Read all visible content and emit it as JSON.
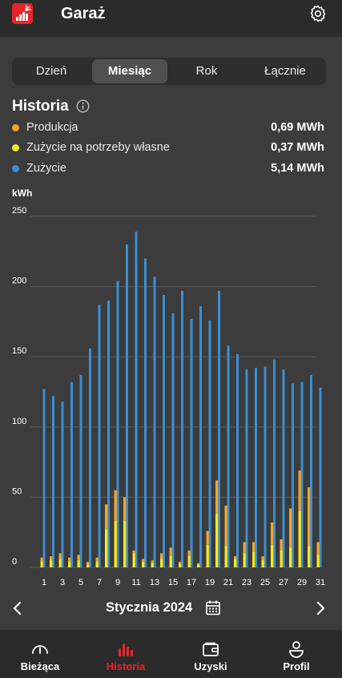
{
  "header": {
    "title": "Garaż",
    "logo_icon": "solar-panel-logo-icon",
    "settings_icon": "gear-icon"
  },
  "period_tabs": [
    {
      "label": "Dzień",
      "active": false
    },
    {
      "label": "Miesiąc",
      "active": true
    },
    {
      "label": "Rok",
      "active": false
    },
    {
      "label": "Łącznie",
      "active": false
    }
  ],
  "history": {
    "title": "Historia",
    "info_icon": "info-icon",
    "legend": [
      {
        "label": "Produkcja",
        "value": "0,69 MWh",
        "color": "#f5a623"
      },
      {
        "label": "Zużycie na potrzeby własne",
        "value": "0,37 MWh",
        "color": "#f8e71c"
      },
      {
        "label": "Zużycie",
        "value": "5,14 MWh",
        "color": "#3a8fd6"
      }
    ]
  },
  "chart_data": {
    "type": "bar",
    "ylabel": "kWh",
    "ylim": [
      0,
      250
    ],
    "yticks": [
      0,
      50,
      100,
      150,
      200,
      250
    ],
    "grid": true,
    "x": [
      1,
      2,
      3,
      4,
      5,
      6,
      7,
      8,
      9,
      10,
      11,
      12,
      13,
      14,
      15,
      16,
      17,
      18,
      19,
      20,
      21,
      22,
      23,
      24,
      25,
      26,
      27,
      28,
      29,
      30,
      31
    ],
    "xtick_labels": [
      "1",
      "3",
      "5",
      "7",
      "9",
      "11",
      "13",
      "15",
      "17",
      "19",
      "21",
      "23",
      "25",
      "27",
      "29",
      "31"
    ],
    "series": [
      {
        "name": "Zużycie",
        "color": "#3a8fd6",
        "values": [
          127,
          122,
          118,
          132,
          137,
          156,
          187,
          190,
          204,
          230,
          239,
          220,
          207,
          194,
          181,
          197,
          177,
          186,
          176,
          197,
          158,
          152,
          141,
          142,
          143,
          148,
          141,
          131,
          132,
          137,
          128
        ]
      },
      {
        "name": "Produkcja",
        "color": "#f5a623",
        "values": [
          7,
          8,
          10,
          7,
          9,
          4,
          7,
          45,
          55,
          50,
          12,
          6,
          5,
          10,
          14,
          4,
          12,
          3,
          26,
          62,
          44,
          8,
          18,
          18,
          8,
          32,
          20,
          42,
          69,
          57,
          18
        ]
      },
      {
        "name": "Zużycie na potrzeby własne",
        "color": "#f8e71c",
        "values": [
          4,
          5,
          6,
          4,
          5,
          2,
          4,
          27,
          33,
          33,
          10,
          4,
          3,
          6,
          8,
          3,
          8,
          2,
          16,
          38,
          15,
          6,
          10,
          11,
          5,
          16,
          12,
          14,
          40,
          15,
          9
        ]
      }
    ]
  },
  "month_nav": {
    "label": "Stycznia 2024",
    "prev_icon": "chevron-left-icon",
    "next_icon": "chevron-right-icon",
    "calendar_icon": "calendar-icon"
  },
  "bottom_nav": [
    {
      "label": "Bieżąca",
      "icon": "gauge-icon",
      "active": false
    },
    {
      "label": "Historia",
      "icon": "bar-chart-icon",
      "active": true
    },
    {
      "label": "Uzyski",
      "icon": "wallet-icon",
      "active": false
    },
    {
      "label": "Profil",
      "icon": "profile-icon",
      "active": false
    }
  ],
  "colors": {
    "accent": "#e5252b",
    "background": "#3c3c3c",
    "bar_dark": "#2b2b2b"
  }
}
